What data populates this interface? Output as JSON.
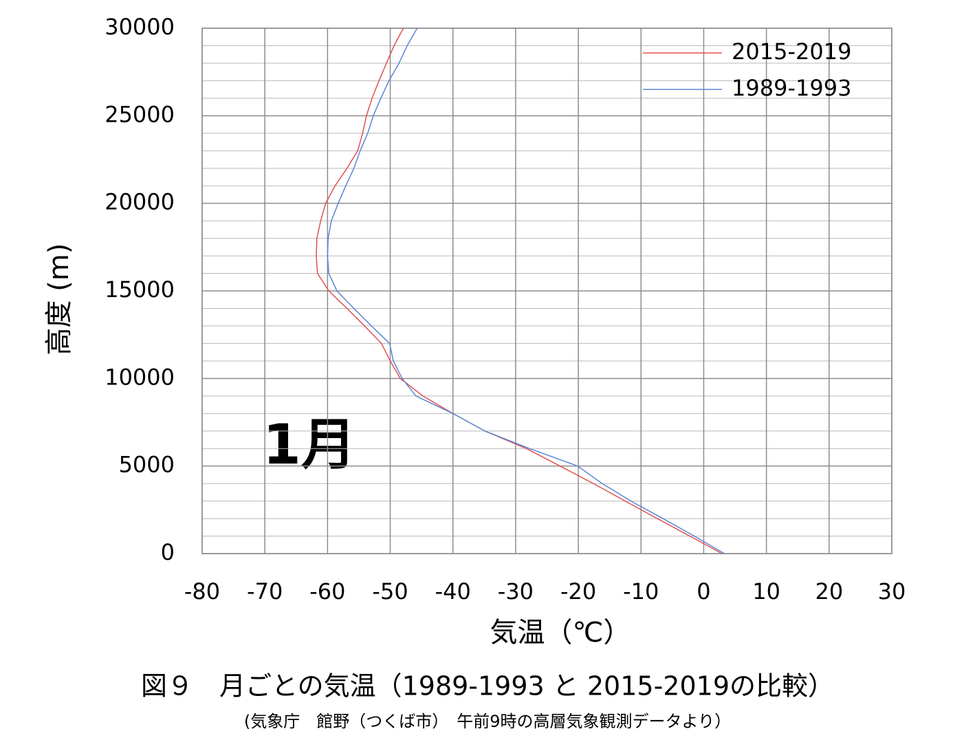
{
  "chart_data": {
    "type": "line",
    "annotation": "1月",
    "xlabel": "気温（℃）",
    "ylabel": "高度 (m)",
    "caption": "図９　月ごとの気温（1989-1993 と 2015-2019の比較）",
    "source": "(気象庁　館野（つくば市）　午前9時の高層気象観測データより）",
    "xlim": [
      -80,
      30
    ],
    "xticks": [
      -80,
      -70,
      -60,
      -50,
      -40,
      -30,
      -20,
      -10,
      0,
      10,
      20,
      30
    ],
    "ylim": [
      0,
      30000
    ],
    "yticks": [
      0,
      5000,
      10000,
      15000,
      20000,
      25000,
      30000
    ],
    "y_minor_grid": [
      1000,
      2000,
      3000,
      4000,
      6000,
      7000,
      8000,
      9000,
      11000,
      12000,
      13000,
      14000,
      16000,
      17000,
      18000,
      19000,
      21000,
      22000,
      23000,
      24000,
      26000,
      27000,
      28000,
      29000
    ],
    "grid": true,
    "legend": "upper right",
    "series": [
      {
        "name": "2015-2019",
        "color": "#e05050",
        "x": [
          2.9,
          -2.2,
          -7.4,
          -12.5,
          -17.6,
          -22.9,
          -28.3,
          -34.9,
          -40,
          -44.8,
          -48.4,
          -50,
          -51.4,
          -54.1,
          -56.9,
          -59.8,
          -61.6,
          -61.8,
          -61.7,
          -61.1,
          -60.3,
          -58.8,
          -56.9,
          -55.2,
          -54.4,
          -53.8,
          -52.9,
          -51.8,
          -50.6,
          -49.4,
          -47.9
        ],
        "y": [
          0,
          1000,
          2000,
          3000,
          4000,
          5000,
          6000,
          7000,
          8000,
          9000,
          10000,
          11000,
          12000,
          13000,
          14000,
          15000,
          16000,
          17000,
          18000,
          19000,
          20000,
          21000,
          22000,
          23000,
          24000,
          25000,
          26000,
          27000,
          28000,
          29000,
          30000
        ]
      },
      {
        "name": "1989-1993",
        "color": "#5b85d6",
        "x": [
          3.3,
          -1.5,
          -6.5,
          -11.6,
          -16.2,
          -20.1,
          -27.8,
          -34.9,
          -40,
          -45.9,
          -48.1,
          -49.5,
          -50.1,
          -53,
          -55.8,
          -58.5,
          -59.8,
          -60,
          -59.9,
          -59.4,
          -58.3,
          -57.1,
          -55.8,
          -54.8,
          -53.6,
          -52.7,
          -51.5,
          -50.2,
          -48.6,
          -47.3,
          -45.7
        ],
        "y": [
          0,
          1000,
          2000,
          3000,
          4000,
          5000,
          6000,
          7000,
          8000,
          9000,
          10000,
          11000,
          12000,
          13000,
          14000,
          15000,
          16000,
          17000,
          18000,
          19000,
          20000,
          21000,
          22000,
          23000,
          24000,
          25000,
          26000,
          27000,
          28000,
          29000,
          30000
        ]
      }
    ]
  }
}
